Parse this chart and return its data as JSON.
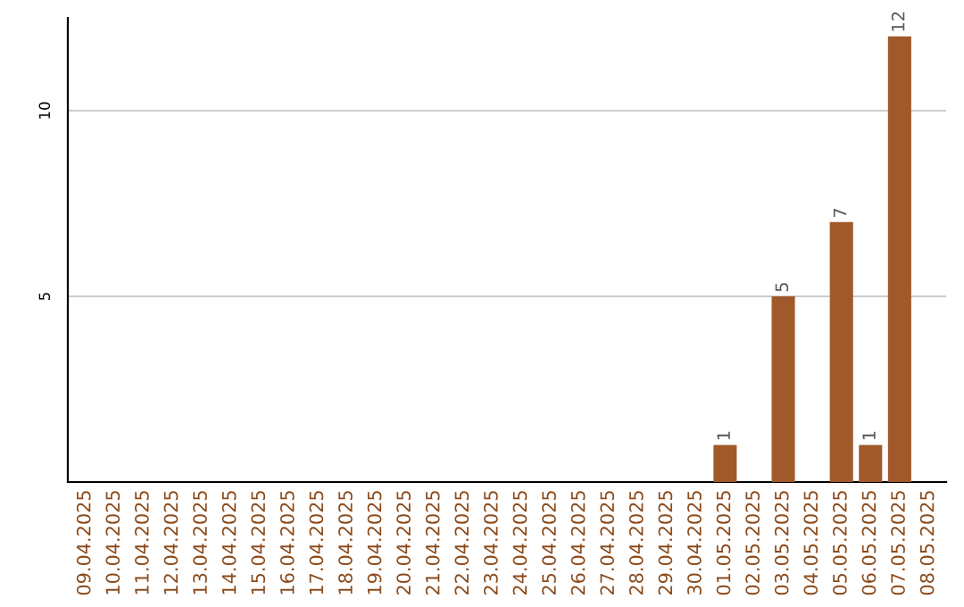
{
  "chart_data": {
    "type": "bar",
    "categories": [
      "09.04.2025",
      "10.04.2025",
      "11.04.2025",
      "12.04.2025",
      "13.04.2025",
      "14.04.2025",
      "15.04.2025",
      "16.04.2025",
      "17.04.2025",
      "18.04.2025",
      "19.04.2025",
      "20.04.2025",
      "21.04.2025",
      "22.04.2025",
      "23.04.2025",
      "24.04.2025",
      "25.04.2025",
      "26.04.2025",
      "27.04.2025",
      "28.04.2025",
      "29.04.2025",
      "30.04.2025",
      "01.05.2025",
      "02.05.2025",
      "03.05.2025",
      "04.05.2025",
      "05.05.2025",
      "06.05.2025",
      "07.05.2025",
      "08.05.2025"
    ],
    "values": [
      null,
      null,
      null,
      null,
      null,
      null,
      null,
      null,
      null,
      null,
      null,
      null,
      null,
      null,
      null,
      null,
      null,
      null,
      null,
      null,
      null,
      null,
      1,
      null,
      5,
      null,
      7,
      1,
      12,
      null
    ],
    "color": "#a0592a",
    "ylim": [
      0,
      12.5
    ],
    "yticks": [
      5,
      10
    ],
    "grid": "y",
    "data_labels": true
  }
}
